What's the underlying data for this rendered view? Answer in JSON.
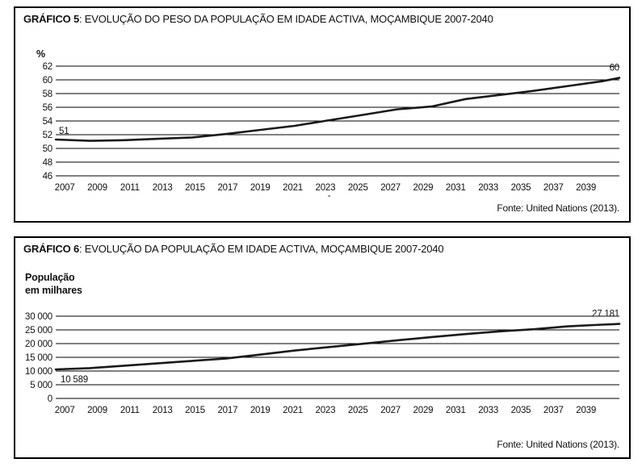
{
  "colors": {
    "background": "#ffffff",
    "panel_border": "#000000",
    "ink": "#111111",
    "grid": "#000000",
    "line": "#1a1a1a"
  },
  "panels": [
    {
      "title_prefix": "GRÁFICO 5",
      "title_rest": ": EVOLUÇÃO DO PESO DA POPULAÇÃO EM IDADE ACTIVA, MOÇAMBIQUE 2007-2040",
      "source": "Fonte: United Nations (2013)."
    },
    {
      "title_prefix": "GRÁFICO 6",
      "title_rest": ": EVOLUÇÃO DA POPULAÇÃO EM IDADE ACTIVA, MOÇAMBIQUE 2007-2040",
      "source": "Fonte: United Nations (2013)."
    }
  ],
  "chart_data": [
    {
      "type": "line",
      "title": "GRÁFICO 5: EVOLUÇÃO DO PESO DA POPULAÇÃO EM IDADE ACTIVA, MOÇAMBIQUE 2007-2040",
      "unit_label_lines": [
        "%"
      ],
      "ylabel": "%",
      "xlim": [
        2007,
        2040
      ],
      "ylim": [
        46,
        62
      ],
      "grid": true,
      "legend": "none",
      "x": [
        2007,
        2009,
        2011,
        2013,
        2015,
        2017,
        2019,
        2021,
        2023,
        2025,
        2027,
        2029,
        2031,
        2033,
        2035,
        2037,
        2039,
        2040
      ],
      "values": [
        51.3,
        51.1,
        51.2,
        51.4,
        51.6,
        52.1,
        52.7,
        53.3,
        54.1,
        54.9,
        55.7,
        56.1,
        57.2,
        57.8,
        58.4,
        59.1,
        59.8,
        60.3
      ],
      "xtick_labels": [
        "2007",
        "2009",
        "2011",
        "2013",
        "2015",
        "2017",
        "2019",
        "2021",
        "2023",
        "2025",
        "2027",
        "2029",
        "2031",
        "2033",
        "2035",
        "2037",
        "2039"
      ],
      "ytick_values": [
        62,
        60,
        58,
        56,
        54,
        52,
        50,
        48,
        46
      ],
      "ytick_labels": [
        "62",
        "60",
        "58",
        "56",
        "54",
        "52",
        "50",
        "48",
        "46"
      ],
      "annotations": [
        {
          "label": "51",
          "year": 2007,
          "value": 51.3,
          "placement": "above-start"
        },
        {
          "label": "60",
          "year": 2040,
          "value": 60.3,
          "placement": "above-end"
        }
      ],
      "stray_mark": {
        "label": "-",
        "year": 2023
      },
      "source": "Fonte: United Nations (2013)."
    },
    {
      "type": "line",
      "title": "GRÁFICO 6: EVOLUÇÃO DA POPULAÇÃO EM IDADE ACTIVA, MOÇAMBIQUE 2007-2040",
      "unit_label_lines": [
        "População",
        "em milhares"
      ],
      "ylabel": "População em milhares",
      "xlim": [
        2007,
        2040
      ],
      "ylim": [
        0,
        30000
      ],
      "grid": true,
      "legend": "none",
      "x": [
        2007,
        2009,
        2011,
        2013,
        2015,
        2017,
        2019,
        2021,
        2023,
        2025,
        2027,
        2029,
        2031,
        2033,
        2035,
        2037,
        2039,
        2040
      ],
      "values": [
        10589,
        11050,
        11930,
        12820,
        13710,
        14600,
        16000,
        17460,
        18740,
        19950,
        21200,
        22390,
        23470,
        24460,
        25250,
        26300,
        26900,
        27181
      ],
      "xtick_labels": [
        "2007",
        "2009",
        "2011",
        "2013",
        "2015",
        "2017",
        "2019",
        "2021",
        "2023",
        "2025",
        "2027",
        "2029",
        "2031",
        "2033",
        "2035",
        "2037",
        "2039"
      ],
      "ytick_values": [
        30000,
        25000,
        20000,
        15000,
        10000,
        5000,
        0
      ],
      "ytick_labels": [
        "30 000",
        "25 000",
        "20 000",
        "15 000",
        "10 000",
        "5 000",
        "0"
      ],
      "annotations": [
        {
          "label": "10 589",
          "year": 2007,
          "value": 10589,
          "placement": "below-start"
        },
        {
          "label": "27 181",
          "year": 2040,
          "value": 27181,
          "placement": "above-end"
        }
      ],
      "source": "Fonte: United Nations (2013)."
    }
  ]
}
